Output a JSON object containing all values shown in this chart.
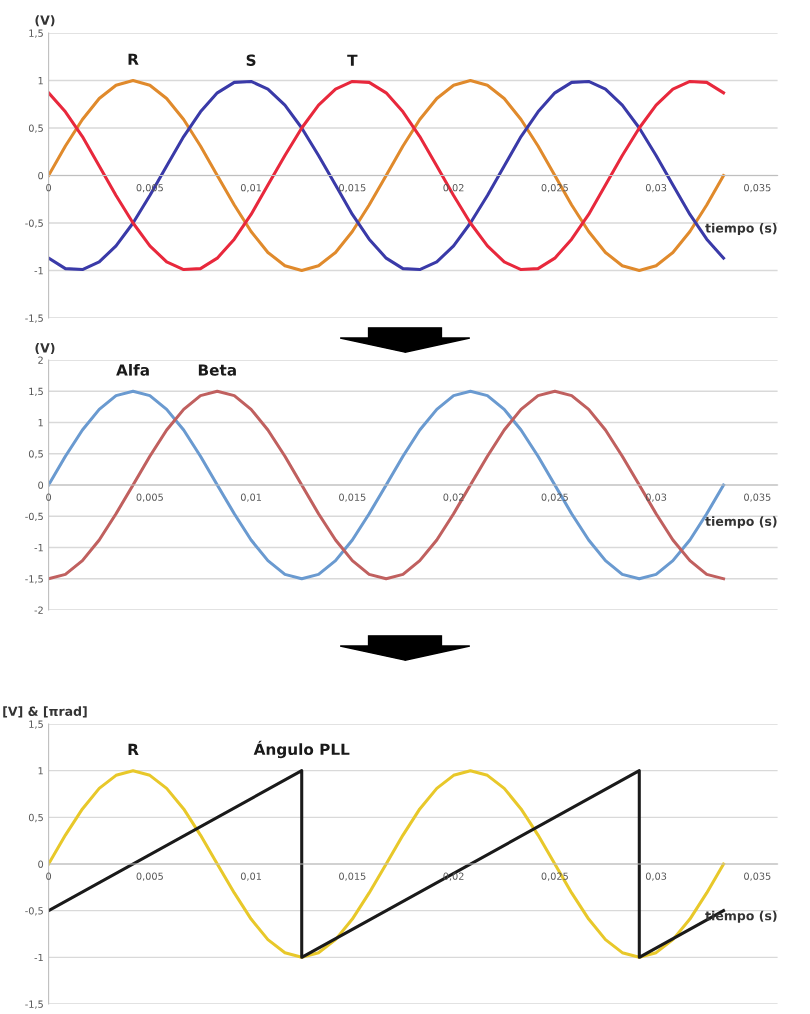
{
  "chart_data": [
    {
      "type": "line",
      "ylabel": "(V)",
      "xlabel": "tiempo (s)",
      "xlim": [
        0,
        0.036
      ],
      "ylim": [
        -1.5,
        1.5
      ],
      "grid": "y",
      "legend": false,
      "xticks": [
        {
          "value": 0,
          "label": "0"
        },
        {
          "value": 0.005,
          "label": "0,005"
        },
        {
          "value": 0.01,
          "label": "0,01"
        },
        {
          "value": 0.015,
          "label": "0,015"
        },
        {
          "value": 0.02,
          "label": "0,02"
        },
        {
          "value": 0.025,
          "label": "0,025"
        },
        {
          "value": 0.03,
          "label": "0,03"
        },
        {
          "value": 0.035,
          "label": "0,035"
        }
      ],
      "yticks": [
        {
          "value": -1.5,
          "label": "-1,5"
        },
        -1,
        {
          "value": -0.5,
          "label": "-0,5"
        },
        0,
        {
          "value": 0.5,
          "label": "0,5"
        },
        1,
        {
          "value": 1.5,
          "label": "1,5"
        }
      ],
      "x": [
        0,
        0.00083,
        0.00167,
        0.0025,
        0.00333,
        0.00417,
        0.005,
        0.00583,
        0.00667,
        0.0075,
        0.00833,
        0.00917,
        0.01,
        0.01083,
        0.01167,
        0.0125,
        0.01333,
        0.01417,
        0.015,
        0.01583,
        0.01667,
        0.0175,
        0.01833,
        0.01917,
        0.02,
        0.02083,
        0.02167,
        0.0225,
        0.02333,
        0.02417,
        0.025,
        0.02583,
        0.02667,
        0.0275,
        0.02833,
        0.02917,
        0.03,
        0.03083,
        0.03167,
        0.0325,
        0.03333
      ],
      "series": [
        {
          "name": "R",
          "color": "#e08a2c",
          "values": [
            0,
            0.31,
            0.59,
            0.81,
            0.95,
            1,
            0.95,
            0.81,
            0.59,
            0.31,
            0,
            -0.31,
            -0.59,
            -0.81,
            -0.95,
            -1,
            -0.95,
            -0.81,
            -0.59,
            -0.31,
            0,
            0.31,
            0.59,
            0.81,
            0.95,
            1,
            0.95,
            0.81,
            0.59,
            0.31,
            0,
            -0.31,
            -0.59,
            -0.81,
            -0.95,
            -1,
            -0.95,
            -0.81,
            -0.59,
            -0.31,
            0
          ]
        },
        {
          "name": "S",
          "color": "#3a3aa8",
          "values": [
            -0.87,
            -0.98,
            -0.99,
            -0.91,
            -0.74,
            -0.5,
            -0.21,
            0.1,
            0.41,
            0.67,
            0.87,
            0.98,
            0.99,
            0.91,
            0.74,
            0.5,
            0.21,
            -0.1,
            -0.41,
            -0.67,
            -0.87,
            -0.98,
            -0.99,
            -0.91,
            -0.74,
            -0.5,
            -0.21,
            0.1,
            0.41,
            0.67,
            0.87,
            0.98,
            0.99,
            0.91,
            0.74,
            0.5,
            0.21,
            -0.1,
            -0.41,
            -0.67,
            -0.87
          ]
        },
        {
          "name": "T",
          "color": "#e8283c",
          "values": [
            0.87,
            0.67,
            0.41,
            0.1,
            -0.21,
            -0.5,
            -0.74,
            -0.91,
            -0.99,
            -0.98,
            -0.87,
            -0.67,
            -0.41,
            -0.1,
            0.21,
            0.5,
            0.74,
            0.91,
            0.99,
            0.98,
            0.87,
            0.67,
            0.41,
            0.1,
            -0.21,
            -0.5,
            -0.74,
            -0.91,
            -0.99,
            -0.98,
            -0.87,
            -0.67,
            -0.41,
            -0.1,
            0.21,
            0.5,
            0.74,
            0.91,
            0.99,
            0.98,
            0.87
          ]
        }
      ]
    },
    {
      "type": "line",
      "ylabel": "(V)",
      "xlabel": "tiempo (s)",
      "xlim": [
        0,
        0.036
      ],
      "ylim": [
        -2,
        2
      ],
      "grid": "y",
      "legend": false,
      "xticks": [
        {
          "value": 0,
          "label": "0"
        },
        {
          "value": 0.005,
          "label": "0,005"
        },
        {
          "value": 0.01,
          "label": "0,01"
        },
        {
          "value": 0.015,
          "label": "0,015"
        },
        {
          "value": 0.02,
          "label": "0,02"
        },
        {
          "value": 0.025,
          "label": "0,025"
        },
        {
          "value": 0.03,
          "label": "0,03"
        },
        {
          "value": 0.035,
          "label": "0,035"
        }
      ],
      "yticks": [
        -2,
        {
          "value": -1.5,
          "label": "-1,5"
        },
        -1,
        {
          "value": -0.5,
          "label": "-0,5"
        },
        0,
        {
          "value": 0.5,
          "label": "0,5"
        },
        1,
        {
          "value": 1.5,
          "label": "1,5"
        },
        2
      ],
      "x": [
        0,
        0.00083,
        0.00167,
        0.0025,
        0.00333,
        0.00417,
        0.005,
        0.00583,
        0.00667,
        0.0075,
        0.00833,
        0.00917,
        0.01,
        0.01083,
        0.01167,
        0.0125,
        0.01333,
        0.01417,
        0.015,
        0.01583,
        0.01667,
        0.0175,
        0.01833,
        0.01917,
        0.02,
        0.02083,
        0.02167,
        0.0225,
        0.02333,
        0.02417,
        0.025,
        0.02583,
        0.02667,
        0.0275,
        0.02833,
        0.02917,
        0.03,
        0.03083,
        0.03167,
        0.0325,
        0.03333
      ],
      "series": [
        {
          "name": "Alfa",
          "color": "#6a9ad0",
          "values": [
            0,
            0.46,
            0.88,
            1.21,
            1.43,
            1.5,
            1.43,
            1.21,
            0.88,
            0.46,
            0,
            -0.46,
            -0.88,
            -1.21,
            -1.43,
            -1.5,
            -1.43,
            -1.21,
            -0.88,
            -0.46,
            0,
            0.46,
            0.88,
            1.21,
            1.43,
            1.5,
            1.43,
            1.21,
            0.88,
            0.46,
            0,
            -0.46,
            -0.88,
            -1.21,
            -1.43,
            -1.5,
            -1.43,
            -1.21,
            -0.88,
            -0.46,
            0
          ]
        },
        {
          "name": "Beta",
          "color": "#c0605f",
          "values": [
            -1.5,
            -1.43,
            -1.21,
            -0.88,
            -0.46,
            0,
            0.46,
            0.88,
            1.21,
            1.43,
            1.5,
            1.43,
            1.21,
            0.88,
            0.46,
            0,
            -0.46,
            -0.88,
            -1.21,
            -1.43,
            -1.5,
            -1.43,
            -1.21,
            -0.88,
            -0.46,
            0,
            0.46,
            0.88,
            1.21,
            1.43,
            1.5,
            1.43,
            1.21,
            0.88,
            0.46,
            0,
            -0.46,
            -0.88,
            -1.21,
            -1.43,
            -1.5
          ]
        }
      ]
    },
    {
      "type": "line",
      "ylabel": "[V] & [πrad]",
      "xlabel": "tiempo (s)",
      "xlim": [
        0,
        0.036
      ],
      "ylim": [
        -1.5,
        1.5
      ],
      "grid": "y",
      "legend": false,
      "xticks": [
        {
          "value": 0,
          "label": "0"
        },
        {
          "value": 0.005,
          "label": "0,005"
        },
        {
          "value": 0.01,
          "label": "0,01"
        },
        {
          "value": 0.015,
          "label": "0,015"
        },
        {
          "value": 0.02,
          "label": "0,02"
        },
        {
          "value": 0.025,
          "label": "0,025"
        },
        {
          "value": 0.03,
          "label": "0,03"
        },
        {
          "value": 0.035,
          "label": "0,035"
        }
      ],
      "yticks": [
        {
          "value": -1.5,
          "label": "-1,5"
        },
        -1,
        {
          "value": -0.5,
          "label": "-0,5"
        },
        0,
        {
          "value": 0.5,
          "label": "0,5"
        },
        1,
        {
          "value": 1.5,
          "label": "1,5"
        }
      ],
      "x": [
        0,
        0.00083,
        0.00167,
        0.0025,
        0.00333,
        0.00417,
        0.005,
        0.00583,
        0.00667,
        0.0075,
        0.00833,
        0.00917,
        0.01,
        0.01083,
        0.01167,
        0.0125,
        0.01333,
        0.01417,
        0.015,
        0.01583,
        0.01667,
        0.0175,
        0.01833,
        0.01917,
        0.02,
        0.02083,
        0.02167,
        0.0225,
        0.02333,
        0.02417,
        0.025,
        0.02583,
        0.02667,
        0.0275,
        0.02833,
        0.02917,
        0.03,
        0.03083,
        0.03167,
        0.0325,
        0.03333
      ],
      "series": [
        {
          "name": "R",
          "color": "#e8c82a",
          "values": [
            0,
            0.31,
            0.59,
            0.81,
            0.95,
            1,
            0.95,
            0.81,
            0.59,
            0.31,
            0,
            -0.31,
            -0.59,
            -0.81,
            -0.95,
            -1,
            -0.95,
            -0.81,
            -0.59,
            -0.31,
            0,
            0.31,
            0.59,
            0.81,
            0.95,
            1,
            0.95,
            0.81,
            0.59,
            0.31,
            0,
            -0.31,
            -0.59,
            -0.81,
            -0.95,
            -1,
            -0.95,
            -0.81,
            -0.59,
            -0.31,
            0
          ]
        },
        {
          "name": "Ángulo PLL",
          "color": "#1a1a1a",
          "x": [
            0,
            0.0125,
            0.0125,
            0.02917,
            0.02917,
            0.03333
          ],
          "values": [
            -0.5,
            1,
            -1,
            1,
            -1,
            -0.5
          ]
        }
      ]
    }
  ]
}
